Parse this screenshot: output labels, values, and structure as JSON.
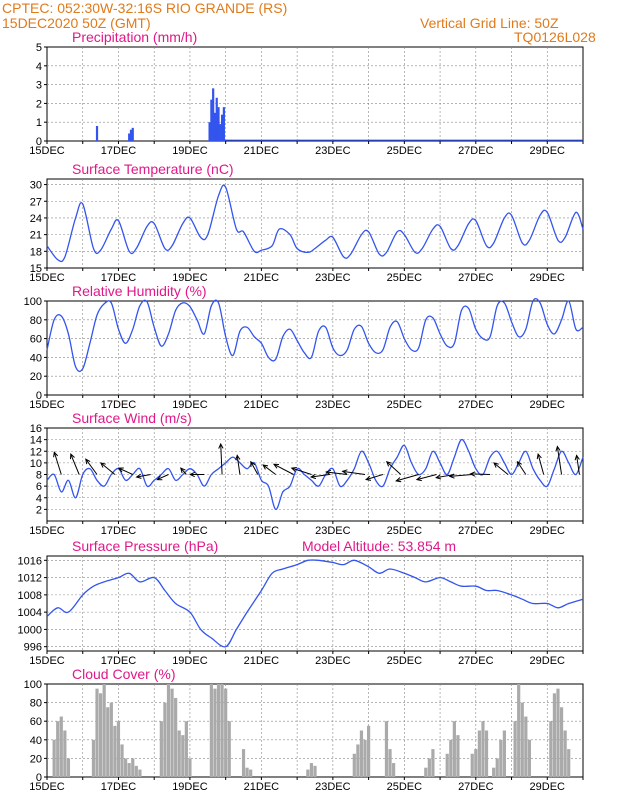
{
  "header": {
    "line1_left": "CPTEC:   052:30W-32:16S   RIO GRANDE (RS)",
    "line2_left": "15DEC2020 50Z (GMT)",
    "line1_right": "Vertical Grid Line: 50Z",
    "line2_right": "TQ0126L028"
  },
  "x_axis": {
    "tick_labels": [
      "15DEC",
      "17DEC",
      "19DEC",
      "21DEC",
      "23DEC",
      "25DEC",
      "27DEC",
      "29DEC"
    ],
    "start_day": 15,
    "end_day": 30
  },
  "colors": {
    "line": "#3355ee",
    "bar": "#3355ee",
    "cloud": "#aaaaaa",
    "title": "#e0188a",
    "header": "#e07a1a",
    "arrow": "#000000"
  },
  "chart_data": [
    {
      "type": "bar",
      "title": "Precipitation (mm/h)",
      "ylim": [
        0,
        5
      ],
      "yticks": [
        0,
        1,
        2,
        3,
        4,
        5
      ],
      "grid": true,
      "x": [
        16.4,
        17.3,
        17.35,
        17.4,
        19.55,
        19.6,
        19.65,
        19.7,
        19.75,
        19.8,
        19.85,
        19.9,
        19.95
      ],
      "values": [
        0.8,
        0.4,
        0.6,
        0.7,
        1.0,
        2.2,
        2.8,
        1.5,
        2.3,
        1.8,
        0.9,
        1.4,
        1.8
      ]
    },
    {
      "type": "line",
      "title": "Surface Temperature (nC)",
      "ylim": [
        15,
        31
      ],
      "yticks": [
        15,
        18,
        21,
        24,
        27,
        30
      ],
      "grid": true,
      "x": [
        15.0,
        15.3,
        15.5,
        15.8,
        16.0,
        16.3,
        16.5,
        16.8,
        17.0,
        17.3,
        17.5,
        17.8,
        18.0,
        18.3,
        18.5,
        18.8,
        19.0,
        19.3,
        19.5,
        19.8,
        20.0,
        20.3,
        20.5,
        20.8,
        21.0,
        21.3,
        21.5,
        21.8,
        22.0,
        22.3,
        22.5,
        22.8,
        23.0,
        23.3,
        23.5,
        23.8,
        24.0,
        24.3,
        24.5,
        24.8,
        25.0,
        25.3,
        25.5,
        25.8,
        26.0,
        26.3,
        26.5,
        26.8,
        27.0,
        27.3,
        27.5,
        27.8,
        28.0,
        28.3,
        28.5,
        28.8,
        29.0,
        29.3,
        29.5,
        29.8,
        30.0
      ],
      "series": [
        {
          "values": [
            19,
            16.5,
            17,
            24,
            26.5,
            18.5,
            18.2,
            22,
            23.5,
            18,
            18.5,
            22.5,
            23,
            18.5,
            19,
            23,
            24,
            20.5,
            21,
            28,
            29.5,
            22,
            21.5,
            18,
            18.2,
            19,
            22,
            21,
            18.5,
            17.8,
            18.5,
            20,
            20.5,
            17,
            17.5,
            21,
            21.5,
            17.5,
            17.8,
            21.5,
            21,
            17.8,
            18.5,
            22,
            22.5,
            18.5,
            19,
            23,
            23.5,
            19,
            19.5,
            24,
            24.5,
            19.5,
            20,
            24.5,
            25,
            20,
            20.5,
            25,
            22
          ]
        }
      ]
    },
    {
      "type": "line",
      "title": "Relative Humidity (%)",
      "ylim": [
        0,
        100
      ],
      "yticks": [
        0,
        20,
        40,
        60,
        80,
        100
      ],
      "grid": true,
      "x": [
        15.0,
        15.2,
        15.4,
        15.6,
        15.8,
        16.0,
        16.2,
        16.4,
        16.6,
        16.8,
        17.0,
        17.2,
        17.4,
        17.6,
        17.8,
        18.0,
        18.2,
        18.4,
        18.6,
        18.8,
        19.0,
        19.2,
        19.4,
        19.6,
        19.8,
        20.0,
        20.2,
        20.4,
        20.6,
        20.8,
        21.0,
        21.2,
        21.4,
        21.6,
        21.8,
        22.0,
        22.2,
        22.4,
        22.6,
        22.8,
        23.0,
        23.2,
        23.4,
        23.6,
        23.8,
        24.0,
        24.2,
        24.4,
        24.6,
        24.8,
        25.0,
        25.2,
        25.4,
        25.6,
        25.8,
        26.0,
        26.2,
        26.4,
        26.6,
        26.8,
        27.0,
        27.2,
        27.4,
        27.6,
        27.8,
        28.0,
        28.2,
        28.4,
        28.6,
        28.8,
        29.0,
        29.2,
        29.4,
        29.6,
        29.8,
        30.0
      ],
      "series": [
        {
          "values": [
            48,
            80,
            84,
            65,
            30,
            28,
            55,
            85,
            97,
            98,
            70,
            55,
            70,
            95,
            99,
            72,
            52,
            65,
            90,
            98,
            94,
            80,
            65,
            95,
            98,
            62,
            42,
            68,
            72,
            62,
            55,
            40,
            38,
            62,
            70,
            58,
            45,
            40,
            68,
            72,
            50,
            42,
            48,
            70,
            73,
            55,
            45,
            48,
            72,
            78,
            60,
            48,
            50,
            80,
            82,
            65,
            52,
            55,
            90,
            92,
            70,
            60,
            62,
            95,
            98,
            78,
            62,
            70,
            100,
            98,
            75,
            65,
            80,
            100,
            70,
            72
          ]
        }
      ]
    },
    {
      "type": "line",
      "title": "Surface Wind (m/s)",
      "ylim": [
        0,
        16
      ],
      "yticks": [
        2,
        4,
        6,
        8,
        10,
        12,
        14,
        16
      ],
      "grid": true,
      "x": [
        15.0,
        15.2,
        15.4,
        15.6,
        15.8,
        16.0,
        16.2,
        16.4,
        16.6,
        16.8,
        17.0,
        17.2,
        17.4,
        17.6,
        17.8,
        18.0,
        18.2,
        18.4,
        18.6,
        18.8,
        19.0,
        19.2,
        19.4,
        19.6,
        19.8,
        20.0,
        20.2,
        20.4,
        20.6,
        20.8,
        21.0,
        21.2,
        21.4,
        21.6,
        21.8,
        22.0,
        22.2,
        22.4,
        22.6,
        22.8,
        23.0,
        23.2,
        23.4,
        23.6,
        23.8,
        24.0,
        24.2,
        24.4,
        24.6,
        24.8,
        25.0,
        25.2,
        25.4,
        25.6,
        25.8,
        26.0,
        26.2,
        26.4,
        26.6,
        26.8,
        27.0,
        27.2,
        27.4,
        27.6,
        27.8,
        28.0,
        28.2,
        28.4,
        28.6,
        28.8,
        29.0,
        29.2,
        29.4,
        29.6,
        29.8,
        30.0
      ],
      "series": [
        {
          "values": [
            7,
            8,
            5,
            7,
            4,
            8,
            9,
            7,
            6,
            8,
            9,
            7,
            8,
            9,
            6,
            7,
            8,
            9,
            7,
            8,
            9,
            8,
            6,
            8,
            9,
            10,
            11,
            10,
            9,
            10,
            7,
            6,
            2,
            5,
            6,
            9,
            8,
            7,
            6,
            8,
            9,
            6,
            7,
            9,
            12,
            10,
            7,
            6,
            9,
            11,
            13,
            10,
            8,
            9,
            12,
            10,
            8,
            11,
            14,
            12,
            9,
            8,
            11,
            12,
            10,
            8,
            10,
            12,
            9,
            7,
            6,
            9,
            12,
            10,
            8,
            11
          ]
        }
      ],
      "arrows": [
        {
          "day": 15.4,
          "dx": -0.5,
          "dy": -3.5
        },
        {
          "day": 15.9,
          "dx": -0.6,
          "dy": -3.2
        },
        {
          "day": 16.4,
          "dx": -0.8,
          "dy": -2.4
        },
        {
          "day": 16.9,
          "dx": -1.0,
          "dy": -1.8
        },
        {
          "day": 17.4,
          "dx": -1.0,
          "dy": -1.0
        },
        {
          "day": 17.9,
          "dx": -1.0,
          "dy": 0.4
        },
        {
          "day": 18.4,
          "dx": -0.8,
          "dy": 0.8
        },
        {
          "day": 18.9,
          "dx": -0.4,
          "dy": -1.0
        },
        {
          "day": 19.4,
          "dx": -1.0,
          "dy": 0.0
        },
        {
          "day": 19.9,
          "dx": -0.1,
          "dy": -4.8
        },
        {
          "day": 20.4,
          "dx": -0.2,
          "dy": -3.0
        },
        {
          "day": 20.9,
          "dx": -0.5,
          "dy": -2.0
        },
        {
          "day": 21.4,
          "dx": -0.9,
          "dy": -1.5
        },
        {
          "day": 21.9,
          "dx": -1.4,
          "dy": -1.6
        },
        {
          "day": 22.4,
          "dx": -1.4,
          "dy": -1.0
        },
        {
          "day": 22.9,
          "dx": -1.3,
          "dy": 0.4
        },
        {
          "day": 23.4,
          "dx": -1.5,
          "dy": -0.4
        },
        {
          "day": 23.9,
          "dx": -1.6,
          "dy": -0.5
        },
        {
          "day": 24.4,
          "dx": -1.2,
          "dy": 0.8
        },
        {
          "day": 24.9,
          "dx": -1.0,
          "dy": -2.0
        },
        {
          "day": 25.4,
          "dx": -1.6,
          "dy": 1.0
        },
        {
          "day": 25.9,
          "dx": -1.4,
          "dy": 0.8
        },
        {
          "day": 26.4,
          "dx": -1.3,
          "dy": 0.5
        },
        {
          "day": 26.9,
          "dx": -1.6,
          "dy": 0.3
        },
        {
          "day": 27.4,
          "dx": -1.4,
          "dy": -0.1
        },
        {
          "day": 27.9,
          "dx": -1.0,
          "dy": -1.8
        },
        {
          "day": 28.4,
          "dx": -0.6,
          "dy": -2.0
        },
        {
          "day": 28.9,
          "dx": -0.4,
          "dy": -3.2
        },
        {
          "day": 29.4,
          "dx": -0.3,
          "dy": -4.4
        },
        {
          "day": 29.9,
          "dx": -0.2,
          "dy": -3.0
        }
      ]
    },
    {
      "type": "line",
      "title": "Surface Pressure (hPa)",
      "annotation": "Model Altitude:  53.854  m",
      "ylim": [
        995,
        1017
      ],
      "yticks": [
        996,
        1000,
        1004,
        1008,
        1012,
        1016
      ],
      "grid": true,
      "x": [
        15.0,
        15.3,
        15.6,
        16.0,
        16.3,
        16.6,
        17.0,
        17.3,
        17.6,
        18.0,
        18.3,
        18.6,
        19.0,
        19.3,
        19.6,
        20.0,
        20.3,
        20.6,
        21.0,
        21.3,
        21.6,
        22.0,
        22.3,
        22.6,
        23.0,
        23.3,
        23.6,
        24.0,
        24.3,
        24.6,
        25.0,
        25.3,
        25.6,
        26.0,
        26.3,
        26.6,
        27.0,
        27.3,
        27.6,
        28.0,
        28.3,
        28.6,
        29.0,
        29.3,
        29.6,
        30.0
      ],
      "series": [
        {
          "values": [
            1003,
            1005,
            1004,
            1008,
            1010,
            1011,
            1012,
            1013,
            1011,
            1012,
            1009,
            1006,
            1004,
            1000,
            998,
            996,
            1000,
            1004,
            1009,
            1013,
            1014,
            1015,
            1016,
            1016,
            1015.5,
            1015,
            1016,
            1014.5,
            1013,
            1014,
            1013,
            1012,
            1011,
            1012,
            1011,
            1010,
            1010,
            1009,
            1009,
            1008,
            1007,
            1006,
            1006,
            1005,
            1006,
            1007
          ]
        }
      ]
    },
    {
      "type": "bar",
      "title": "Cloud Cover (%)",
      "ylim": [
        0,
        100
      ],
      "yticks": [
        0,
        20,
        40,
        60,
        80,
        100
      ],
      "grid": true,
      "x": [
        15.2,
        15.3,
        15.4,
        15.5,
        15.6,
        16.3,
        16.4,
        16.5,
        16.6,
        16.7,
        16.8,
        16.9,
        17.0,
        17.1,
        17.2,
        17.3,
        17.4,
        17.5,
        17.6,
        18.2,
        18.3,
        18.4,
        18.5,
        18.6,
        18.7,
        18.8,
        18.9,
        19.0,
        19.6,
        19.7,
        19.8,
        19.9,
        20.0,
        20.1,
        20.5,
        20.6,
        20.7,
        22.3,
        22.4,
        22.5,
        23.6,
        23.7,
        23.8,
        23.9,
        24.0,
        24.5,
        24.6,
        24.7,
        25.6,
        25.7,
        25.8,
        26.2,
        26.3,
        26.4,
        26.5,
        26.9,
        27.0,
        27.1,
        27.2,
        27.3,
        27.5,
        27.6,
        27.7,
        27.8,
        28.1,
        28.2,
        28.3,
        28.4,
        28.5,
        29.1,
        29.2,
        29.3,
        29.4,
        29.5,
        29.6
      ],
      "values": [
        40,
        60,
        65,
        50,
        20,
        40,
        95,
        90,
        100,
        75,
        80,
        55,
        60,
        35,
        20,
        15,
        20,
        12,
        8,
        60,
        80,
        100,
        95,
        85,
        50,
        45,
        60,
        20,
        100,
        95,
        100,
        100,
        95,
        60,
        30,
        10,
        8,
        8,
        15,
        12,
        25,
        35,
        50,
        40,
        55,
        60,
        30,
        15,
        10,
        20,
        30,
        25,
        40,
        60,
        45,
        25,
        30,
        50,
        60,
        50,
        10,
        20,
        40,
        50,
        60,
        100,
        80,
        65,
        40,
        60,
        90,
        95,
        75,
        50,
        30
      ]
    }
  ]
}
